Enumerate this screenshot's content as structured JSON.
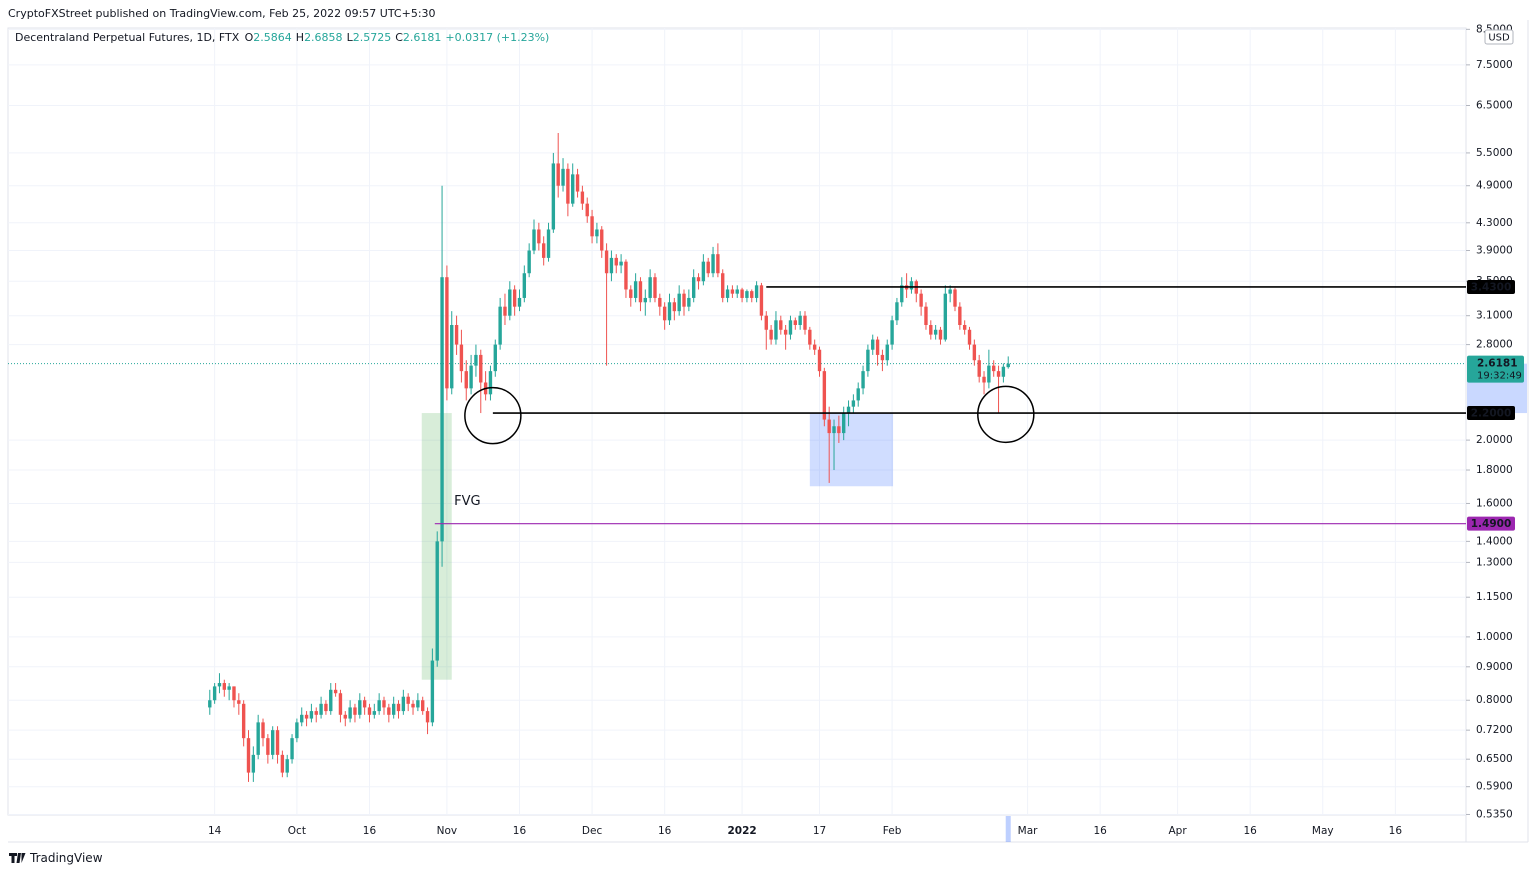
{
  "chart_data": {
    "type": "candlestick",
    "published": "CryptoFXStreet published on TradingView.com, Feb 25, 2022 09:57 UTC+5:30",
    "title": "Decentraland Perpetual Futures, 1D, FTX",
    "ohlc_legend": [
      {
        "label": "O",
        "value": 2.5864
      },
      {
        "label": "H",
        "value": 2.6858
      },
      {
        "label": "L",
        "value": 2.5725
      },
      {
        "label": "C",
        "value": 2.6181
      }
    ],
    "change": "+0.0317 (+1.23%)",
    "currency": "USD",
    "brand": "TradingView",
    "up_color": "#26a69a",
    "down_color": "#ef5350",
    "log_scale": true,
    "grid": true,
    "xlim": [
      -41.7,
      259.6
    ],
    "xticks": [
      {
        "value": 1,
        "label": "14"
      },
      {
        "value": 18,
        "label": "Oct"
      },
      {
        "value": 33,
        "label": "16"
      },
      {
        "value": 49,
        "label": "Nov"
      },
      {
        "value": 64,
        "label": "16"
      },
      {
        "value": 79,
        "label": "Dec"
      },
      {
        "value": 94,
        "label": "16"
      },
      {
        "value": 110,
        "label": "2022"
      },
      {
        "value": 126,
        "label": "17"
      },
      {
        "value": 141,
        "label": "Feb"
      },
      {
        "value": 169,
        "label": "Mar"
      },
      {
        "value": 184,
        "label": "16"
      },
      {
        "value": 200,
        "label": "Apr"
      },
      {
        "value": 215,
        "label": "16"
      },
      {
        "value": 230,
        "label": "May"
      },
      {
        "value": 245,
        "label": "16"
      }
    ],
    "ylim": [
      0.534,
      8.54
    ],
    "yticks": [
      {
        "value": 8.5,
        "label": "8.5000"
      },
      {
        "value": 7.5,
        "label": "7.5000"
      },
      {
        "value": 6.5,
        "label": "6.5000"
      },
      {
        "value": 5.5,
        "label": "5.5000"
      },
      {
        "value": 4.9,
        "label": "4.9000"
      },
      {
        "value": 4.3,
        "label": "4.3000"
      },
      {
        "value": 3.9,
        "label": "3.9000"
      },
      {
        "value": 3.5,
        "label": "3.5000"
      },
      {
        "value": 3.1,
        "label": "3.1000"
      },
      {
        "value": 2.8,
        "label": "2.8000"
      },
      {
        "value": 2,
        "label": "2.0000"
      },
      {
        "value": 1.8,
        "label": "1.8000"
      },
      {
        "value": 1.6,
        "label": "1.6000"
      },
      {
        "value": 1.4,
        "label": "1.4000"
      },
      {
        "value": 1.3,
        "label": "1.3000"
      },
      {
        "value": 1.15,
        "label": "1.1500"
      },
      {
        "value": 1,
        "label": "1.0000"
      },
      {
        "value": 0.9,
        "label": "0.9000"
      },
      {
        "value": 0.8,
        "label": "0.8000"
      },
      {
        "value": 0.72,
        "label": "0.7200"
      },
      {
        "value": 0.65,
        "label": "0.6500"
      },
      {
        "value": 0.59,
        "label": "0.5900"
      },
      {
        "value": 0.535,
        "label": "0.5350"
      }
    ],
    "zones": [
      {
        "from": 43.8,
        "to": 50,
        "low": 0.86,
        "high": 2.2,
        "color": "rgba(76,175,80,0.22)"
      },
      {
        "from": 124,
        "to": 141.2,
        "low": 1.7,
        "high": 2.2,
        "color": "rgba(41,98,255,0.22)"
      }
    ],
    "circles": [
      {
        "day": 58.5,
        "price": 2.18
      },
      {
        "day": 164.5,
        "price": 2.19
      }
    ],
    "levels": [
      {
        "value": 3.43,
        "label": "3.4300",
        "from": 115,
        "color": "#000000"
      },
      {
        "value": 2.2,
        "label": "2.2000",
        "from": 58.5,
        "color": "#000000"
      },
      {
        "value": 1.49,
        "label": "1.4900",
        "from": 46.5,
        "color": "#9c27b0"
      }
    ],
    "current": {
      "value": 2.6181,
      "label": "2.6181",
      "countdown": "19:32:49",
      "color": "#26a69a"
    },
    "annotation": {
      "text": "FVG",
      "day": 50.5,
      "price": 1.61
    },
    "ohlc": [
      [
        0.78,
        0.83,
        0.76,
        0.8
      ],
      [
        0.8,
        0.85,
        0.79,
        0.84
      ],
      [
        0.84,
        0.88,
        0.82,
        0.85
      ],
      [
        0.85,
        0.86,
        0.81,
        0.83
      ],
      [
        0.83,
        0.85,
        0.8,
        0.84
      ],
      [
        0.84,
        0.84,
        0.78,
        0.8
      ],
      [
        0.8,
        0.82,
        0.76,
        0.79
      ],
      [
        0.79,
        0.8,
        0.68,
        0.7
      ],
      [
        0.7,
        0.72,
        0.6,
        0.62
      ],
      [
        0.62,
        0.68,
        0.6,
        0.66
      ],
      [
        0.66,
        0.76,
        0.65,
        0.74
      ],
      [
        0.74,
        0.75,
        0.68,
        0.7
      ],
      [
        0.7,
        0.71,
        0.64,
        0.66
      ],
      [
        0.66,
        0.73,
        0.65,
        0.72
      ],
      [
        0.72,
        0.73,
        0.64,
        0.66
      ],
      [
        0.66,
        0.67,
        0.61,
        0.62
      ],
      [
        0.62,
        0.66,
        0.61,
        0.65
      ],
      [
        0.65,
        0.71,
        0.64,
        0.7
      ],
      [
        0.7,
        0.75,
        0.69,
        0.74
      ],
      [
        0.74,
        0.78,
        0.73,
        0.76
      ],
      [
        0.76,
        0.77,
        0.73,
        0.75
      ],
      [
        0.75,
        0.79,
        0.74,
        0.77
      ],
      [
        0.77,
        0.78,
        0.74,
        0.76
      ],
      [
        0.76,
        0.81,
        0.75,
        0.79
      ],
      [
        0.79,
        0.8,
        0.76,
        0.77
      ],
      [
        0.77,
        0.85,
        0.76,
        0.83
      ],
      [
        0.83,
        0.85,
        0.81,
        0.82
      ],
      [
        0.82,
        0.83,
        0.74,
        0.76
      ],
      [
        0.76,
        0.77,
        0.73,
        0.75
      ],
      [
        0.75,
        0.8,
        0.74,
        0.78
      ],
      [
        0.78,
        0.79,
        0.74,
        0.76
      ],
      [
        0.76,
        0.82,
        0.75,
        0.8
      ],
      [
        0.8,
        0.81,
        0.76,
        0.78
      ],
      [
        0.78,
        0.79,
        0.74,
        0.76
      ],
      [
        0.76,
        0.79,
        0.75,
        0.77
      ],
      [
        0.77,
        0.82,
        0.76,
        0.8
      ],
      [
        0.8,
        0.81,
        0.76,
        0.78
      ],
      [
        0.78,
        0.79,
        0.74,
        0.76
      ],
      [
        0.76,
        0.81,
        0.75,
        0.79
      ],
      [
        0.79,
        0.8,
        0.75,
        0.77
      ],
      [
        0.77,
        0.83,
        0.76,
        0.81
      ],
      [
        0.81,
        0.82,
        0.77,
        0.79
      ],
      [
        0.79,
        0.8,
        0.76,
        0.78
      ],
      [
        0.78,
        0.82,
        0.77,
        0.8
      ],
      [
        0.8,
        0.81,
        0.76,
        0.77
      ],
      [
        0.77,
        0.78,
        0.71,
        0.74
      ],
      [
        0.74,
        0.96,
        0.73,
        0.92
      ],
      [
        0.92,
        1.45,
        0.9,
        1.4
      ],
      [
        1.4,
        4.9,
        1.28,
        3.55
      ],
      [
        3.55,
        3.7,
        2.3,
        2.4
      ],
      [
        2.4,
        3.15,
        2.35,
        3.0
      ],
      [
        3.0,
        3.1,
        2.7,
        2.8
      ],
      [
        2.8,
        2.95,
        2.45,
        2.55
      ],
      [
        2.55,
        2.65,
        2.3,
        2.4
      ],
      [
        2.4,
        2.7,
        2.35,
        2.6
      ],
      [
        2.6,
        2.8,
        2.5,
        2.7
      ],
      [
        2.7,
        2.75,
        2.2,
        2.45
      ],
      [
        2.45,
        2.55,
        2.3,
        2.35
      ],
      [
        2.35,
        2.6,
        2.3,
        2.55
      ],
      [
        2.55,
        2.85,
        2.5,
        2.8
      ],
      [
        2.8,
        3.3,
        2.75,
        3.2
      ],
      [
        3.2,
        3.35,
        3.0,
        3.1
      ],
      [
        3.1,
        3.5,
        3.05,
        3.4
      ],
      [
        3.4,
        3.45,
        3.1,
        3.2
      ],
      [
        3.2,
        3.4,
        3.15,
        3.3
      ],
      [
        3.3,
        3.7,
        3.25,
        3.6
      ],
      [
        3.6,
        4.0,
        3.55,
        3.9
      ],
      [
        3.9,
        4.35,
        3.85,
        4.2
      ],
      [
        4.2,
        4.3,
        3.9,
        4.0
      ],
      [
        4.0,
        4.1,
        3.7,
        3.8
      ],
      [
        3.8,
        4.3,
        3.75,
        4.2
      ],
      [
        4.2,
        5.5,
        4.15,
        5.3
      ],
      [
        5.3,
        5.9,
        4.7,
        4.9
      ],
      [
        4.9,
        5.4,
        4.8,
        5.2
      ],
      [
        5.2,
        5.3,
        4.4,
        4.6
      ],
      [
        4.6,
        5.3,
        4.55,
        5.1
      ],
      [
        5.1,
        5.2,
        4.7,
        4.8
      ],
      [
        4.8,
        4.9,
        4.5,
        4.6
      ],
      [
        4.6,
        4.7,
        4.3,
        4.4
      ],
      [
        4.4,
        4.5,
        4.0,
        4.1
      ],
      [
        4.1,
        4.3,
        4.0,
        4.2
      ],
      [
        4.2,
        4.25,
        3.8,
        3.9
      ],
      [
        3.9,
        4.0,
        2.6,
        3.6
      ],
      [
        3.6,
        3.9,
        3.5,
        3.8
      ],
      [
        3.8,
        3.85,
        3.6,
        3.7
      ],
      [
        3.7,
        3.85,
        3.6,
        3.75
      ],
      [
        3.75,
        3.78,
        3.3,
        3.4
      ],
      [
        3.4,
        3.45,
        3.2,
        3.3
      ],
      [
        3.3,
        3.6,
        3.25,
        3.5
      ],
      [
        3.5,
        3.55,
        3.15,
        3.25
      ],
      [
        3.25,
        3.4,
        3.1,
        3.3
      ],
      [
        3.3,
        3.65,
        3.25,
        3.55
      ],
      [
        3.55,
        3.6,
        3.25,
        3.3
      ],
      [
        3.3,
        3.35,
        3.1,
        3.2
      ],
      [
        3.2,
        3.25,
        2.95,
        3.05
      ],
      [
        3.05,
        3.35,
        3.0,
        3.25
      ],
      [
        3.25,
        3.3,
        3.05,
        3.15
      ],
      [
        3.15,
        3.45,
        3.1,
        3.35
      ],
      [
        3.35,
        3.4,
        3.1,
        3.2
      ],
      [
        3.2,
        3.4,
        3.15,
        3.3
      ],
      [
        3.3,
        3.65,
        3.25,
        3.55
      ],
      [
        3.55,
        3.6,
        3.4,
        3.5
      ],
      [
        3.5,
        3.85,
        3.45,
        3.75
      ],
      [
        3.75,
        3.8,
        3.55,
        3.6
      ],
      [
        3.6,
        3.95,
        3.55,
        3.85
      ],
      [
        3.85,
        4.0,
        3.55,
        3.6
      ],
      [
        3.6,
        3.65,
        3.25,
        3.3
      ],
      [
        3.3,
        3.45,
        3.25,
        3.4
      ],
      [
        3.4,
        3.45,
        3.3,
        3.35
      ],
      [
        3.35,
        3.45,
        3.3,
        3.4
      ],
      [
        3.4,
        3.42,
        3.25,
        3.3
      ],
      [
        3.3,
        3.4,
        3.25,
        3.38
      ],
      [
        3.38,
        3.4,
        3.25,
        3.3
      ],
      [
        3.3,
        3.5,
        3.25,
        3.45
      ],
      [
        3.45,
        3.48,
        3.05,
        3.1
      ],
      [
        3.1,
        3.15,
        2.75,
        2.95
      ],
      [
        2.95,
        3.0,
        2.8,
        2.85
      ],
      [
        2.85,
        3.15,
        2.8,
        3.05
      ],
      [
        3.05,
        3.1,
        2.9,
        2.95
      ],
      [
        2.95,
        3.0,
        2.75,
        2.9
      ],
      [
        2.9,
        3.1,
        2.85,
        3.05
      ],
      [
        3.05,
        3.08,
        2.95,
        3.0
      ],
      [
        3.0,
        3.15,
        2.95,
        3.1
      ],
      [
        3.1,
        3.15,
        2.9,
        2.95
      ],
      [
        2.95,
        2.98,
        2.75,
        2.8
      ],
      [
        2.8,
        2.85,
        2.7,
        2.75
      ],
      [
        2.75,
        2.78,
        2.5,
        2.55
      ],
      [
        2.55,
        2.58,
        2.1,
        2.15
      ],
      [
        2.15,
        2.25,
        1.72,
        2.05
      ],
      [
        2.05,
        2.15,
        1.8,
        2.1
      ],
      [
        2.1,
        2.18,
        1.98,
        2.05
      ],
      [
        2.05,
        2.25,
        2.0,
        2.2
      ],
      [
        2.2,
        2.3,
        2.1,
        2.25
      ],
      [
        2.25,
        2.35,
        2.2,
        2.3
      ],
      [
        2.3,
        2.45,
        2.25,
        2.4
      ],
      [
        2.4,
        2.6,
        2.35,
        2.55
      ],
      [
        2.55,
        2.8,
        2.5,
        2.75
      ],
      [
        2.75,
        2.9,
        2.7,
        2.85
      ],
      [
        2.85,
        2.88,
        2.6,
        2.7
      ],
      [
        2.7,
        2.75,
        2.55,
        2.65
      ],
      [
        2.65,
        2.85,
        2.6,
        2.8
      ],
      [
        2.8,
        3.1,
        2.75,
        3.05
      ],
      [
        3.05,
        3.3,
        3.0,
        3.25
      ],
      [
        3.25,
        3.55,
        3.2,
        3.45
      ],
      [
        3.45,
        3.6,
        3.3,
        3.4
      ],
      [
        3.4,
        3.55,
        3.35,
        3.5
      ],
      [
        3.5,
        3.52,
        3.25,
        3.35
      ],
      [
        3.35,
        3.4,
        3.1,
        3.2
      ],
      [
        3.2,
        3.25,
        2.95,
        3.0
      ],
      [
        3.0,
        3.05,
        2.85,
        2.9
      ],
      [
        2.9,
        3.0,
        2.85,
        2.95
      ],
      [
        2.95,
        2.98,
        2.8,
        2.85
      ],
      [
        2.85,
        3.45,
        2.83,
        3.35
      ],
      [
        3.35,
        3.45,
        3.25,
        3.4
      ],
      [
        3.4,
        3.42,
        3.15,
        3.2
      ],
      [
        3.2,
        3.25,
        2.95,
        3.0
      ],
      [
        3.0,
        3.05,
        2.9,
        2.95
      ],
      [
        2.95,
        2.98,
        2.75,
        2.8
      ],
      [
        2.8,
        2.85,
        2.6,
        2.65
      ],
      [
        2.65,
        2.7,
        2.45,
        2.5
      ],
      [
        2.5,
        2.55,
        2.35,
        2.45
      ],
      [
        2.45,
        2.75,
        2.4,
        2.6
      ],
      [
        2.6,
        2.65,
        2.5,
        2.55
      ],
      [
        2.55,
        2.6,
        2.2,
        2.5
      ],
      [
        2.5,
        2.62,
        2.45,
        2.59
      ],
      [
        2.5864,
        2.6858,
        2.5725,
        2.6181
      ]
    ]
  }
}
